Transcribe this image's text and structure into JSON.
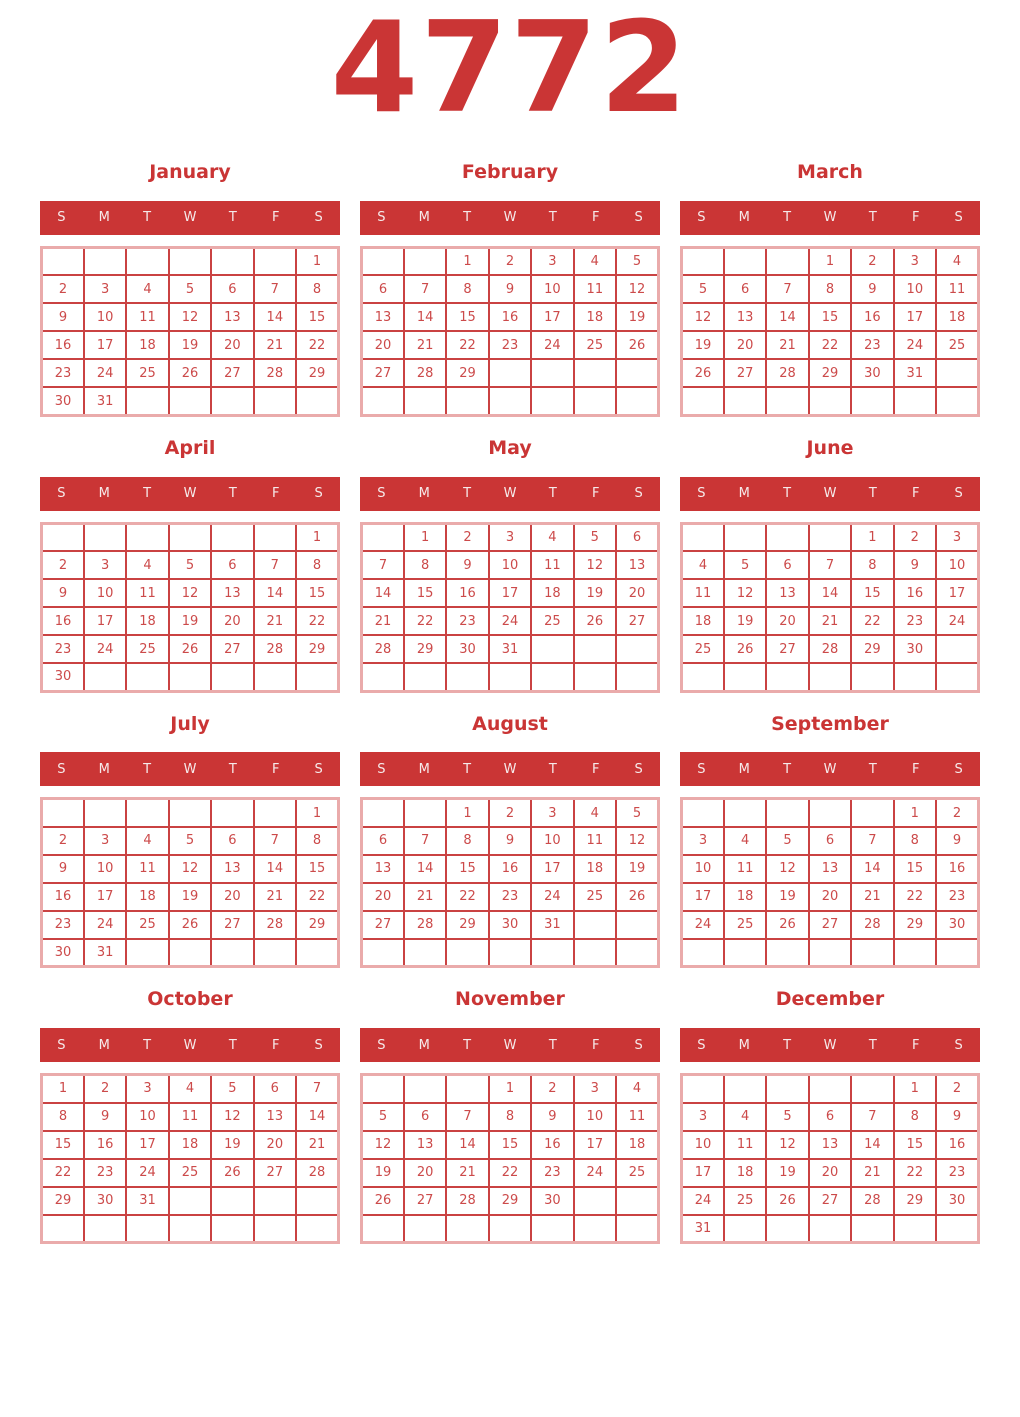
{
  "year": "4772",
  "weekdays": [
    "S",
    "M",
    "T",
    "W",
    "T",
    "F",
    "S"
  ],
  "colors": {
    "accent": "#ca3535",
    "date_text": "#cc4a4a",
    "grid_line": "#ca4242",
    "grid_outline": "#eaabab",
    "weekday_text": "#f6eaea",
    "page_bg": "#ffffff"
  },
  "months": [
    {
      "name": "January",
      "weeks": [
        [
          "",
          "",
          "",
          "",
          "",
          "",
          "1"
        ],
        [
          "2",
          "3",
          "4",
          "5",
          "6",
          "7",
          "8"
        ],
        [
          "9",
          "10",
          "11",
          "12",
          "13",
          "14",
          "15"
        ],
        [
          "16",
          "17",
          "18",
          "19",
          "20",
          "21",
          "22"
        ],
        [
          "23",
          "24",
          "25",
          "26",
          "27",
          "28",
          "29"
        ],
        [
          "30",
          "31",
          "",
          "",
          "",
          "",
          ""
        ]
      ]
    },
    {
      "name": "February",
      "weeks": [
        [
          "",
          "",
          "1",
          "2",
          "3",
          "4",
          "5"
        ],
        [
          "6",
          "7",
          "8",
          "9",
          "10",
          "11",
          "12"
        ],
        [
          "13",
          "14",
          "15",
          "16",
          "17",
          "18",
          "19"
        ],
        [
          "20",
          "21",
          "22",
          "23",
          "24",
          "25",
          "26"
        ],
        [
          "27",
          "28",
          "29",
          "",
          "",
          "",
          ""
        ],
        [
          "",
          "",
          "",
          "",
          "",
          "",
          ""
        ]
      ]
    },
    {
      "name": "March",
      "weeks": [
        [
          "",
          "",
          "",
          "1",
          "2",
          "3",
          "4"
        ],
        [
          "5",
          "6",
          "7",
          "8",
          "9",
          "10",
          "11"
        ],
        [
          "12",
          "13",
          "14",
          "15",
          "16",
          "17",
          "18"
        ],
        [
          "19",
          "20",
          "21",
          "22",
          "23",
          "24",
          "25"
        ],
        [
          "26",
          "27",
          "28",
          "29",
          "30",
          "31",
          ""
        ],
        [
          "",
          "",
          "",
          "",
          "",
          "",
          ""
        ]
      ]
    },
    {
      "name": "April",
      "weeks": [
        [
          "",
          "",
          "",
          "",
          "",
          "",
          "1"
        ],
        [
          "2",
          "3",
          "4",
          "5",
          "6",
          "7",
          "8"
        ],
        [
          "9",
          "10",
          "11",
          "12",
          "13",
          "14",
          "15"
        ],
        [
          "16",
          "17",
          "18",
          "19",
          "20",
          "21",
          "22"
        ],
        [
          "23",
          "24",
          "25",
          "26",
          "27",
          "28",
          "29"
        ],
        [
          "30",
          "",
          "",
          "",
          "",
          "",
          ""
        ]
      ]
    },
    {
      "name": "May",
      "weeks": [
        [
          "",
          "1",
          "2",
          "3",
          "4",
          "5",
          "6"
        ],
        [
          "7",
          "8",
          "9",
          "10",
          "11",
          "12",
          "13"
        ],
        [
          "14",
          "15",
          "16",
          "17",
          "18",
          "19",
          "20"
        ],
        [
          "21",
          "22",
          "23",
          "24",
          "25",
          "26",
          "27"
        ],
        [
          "28",
          "29",
          "30",
          "31",
          "",
          "",
          ""
        ],
        [
          "",
          "",
          "",
          "",
          "",
          "",
          ""
        ]
      ]
    },
    {
      "name": "June",
      "weeks": [
        [
          "",
          "",
          "",
          "",
          "1",
          "2",
          "3"
        ],
        [
          "4",
          "5",
          "6",
          "7",
          "8",
          "9",
          "10"
        ],
        [
          "11",
          "12",
          "13",
          "14",
          "15",
          "16",
          "17"
        ],
        [
          "18",
          "19",
          "20",
          "21",
          "22",
          "23",
          "24"
        ],
        [
          "25",
          "26",
          "27",
          "28",
          "29",
          "30",
          ""
        ],
        [
          "",
          "",
          "",
          "",
          "",
          "",
          ""
        ]
      ]
    },
    {
      "name": "July",
      "weeks": [
        [
          "",
          "",
          "",
          "",
          "",
          "",
          "1"
        ],
        [
          "2",
          "3",
          "4",
          "5",
          "6",
          "7",
          "8"
        ],
        [
          "9",
          "10",
          "11",
          "12",
          "13",
          "14",
          "15"
        ],
        [
          "16",
          "17",
          "18",
          "19",
          "20",
          "21",
          "22"
        ],
        [
          "23",
          "24",
          "25",
          "26",
          "27",
          "28",
          "29"
        ],
        [
          "30",
          "31",
          "",
          "",
          "",
          "",
          ""
        ]
      ]
    },
    {
      "name": "August",
      "weeks": [
        [
          "",
          "",
          "1",
          "2",
          "3",
          "4",
          "5"
        ],
        [
          "6",
          "7",
          "8",
          "9",
          "10",
          "11",
          "12"
        ],
        [
          "13",
          "14",
          "15",
          "16",
          "17",
          "18",
          "19"
        ],
        [
          "20",
          "21",
          "22",
          "23",
          "24",
          "25",
          "26"
        ],
        [
          "27",
          "28",
          "29",
          "30",
          "31",
          "",
          ""
        ],
        [
          "",
          "",
          "",
          "",
          "",
          "",
          ""
        ]
      ]
    },
    {
      "name": "September",
      "weeks": [
        [
          "",
          "",
          "",
          "",
          "",
          "1",
          "2"
        ],
        [
          "3",
          "4",
          "5",
          "6",
          "7",
          "8",
          "9"
        ],
        [
          "10",
          "11",
          "12",
          "13",
          "14",
          "15",
          "16"
        ],
        [
          "17",
          "18",
          "19",
          "20",
          "21",
          "22",
          "23"
        ],
        [
          "24",
          "25",
          "26",
          "27",
          "28",
          "29",
          "30"
        ],
        [
          "",
          "",
          "",
          "",
          "",
          "",
          ""
        ]
      ]
    },
    {
      "name": "October",
      "weeks": [
        [
          "1",
          "2",
          "3",
          "4",
          "5",
          "6",
          "7"
        ],
        [
          "8",
          "9",
          "10",
          "11",
          "12",
          "13",
          "14"
        ],
        [
          "15",
          "16",
          "17",
          "18",
          "19",
          "20",
          "21"
        ],
        [
          "22",
          "23",
          "24",
          "25",
          "26",
          "27",
          "28"
        ],
        [
          "29",
          "30",
          "31",
          "",
          "",
          "",
          ""
        ],
        [
          "",
          "",
          "",
          "",
          "",
          "",
          ""
        ]
      ]
    },
    {
      "name": "November",
      "weeks": [
        [
          "",
          "",
          "",
          "1",
          "2",
          "3",
          "4"
        ],
        [
          "5",
          "6",
          "7",
          "8",
          "9",
          "10",
          "11"
        ],
        [
          "12",
          "13",
          "14",
          "15",
          "16",
          "17",
          "18"
        ],
        [
          "19",
          "20",
          "21",
          "22",
          "23",
          "24",
          "25"
        ],
        [
          "26",
          "27",
          "28",
          "29",
          "30",
          "",
          ""
        ],
        [
          "",
          "",
          "",
          "",
          "",
          "",
          ""
        ]
      ]
    },
    {
      "name": "December",
      "weeks": [
        [
          "",
          "",
          "",
          "",
          "",
          "1",
          "2"
        ],
        [
          "3",
          "4",
          "5",
          "6",
          "7",
          "8",
          "9"
        ],
        [
          "10",
          "11",
          "12",
          "13",
          "14",
          "15",
          "16"
        ],
        [
          "17",
          "18",
          "19",
          "20",
          "21",
          "22",
          "23"
        ],
        [
          "24",
          "25",
          "26",
          "27",
          "28",
          "29",
          "30"
        ],
        [
          "31",
          "",
          "",
          "",
          "",
          "",
          ""
        ]
      ]
    }
  ]
}
